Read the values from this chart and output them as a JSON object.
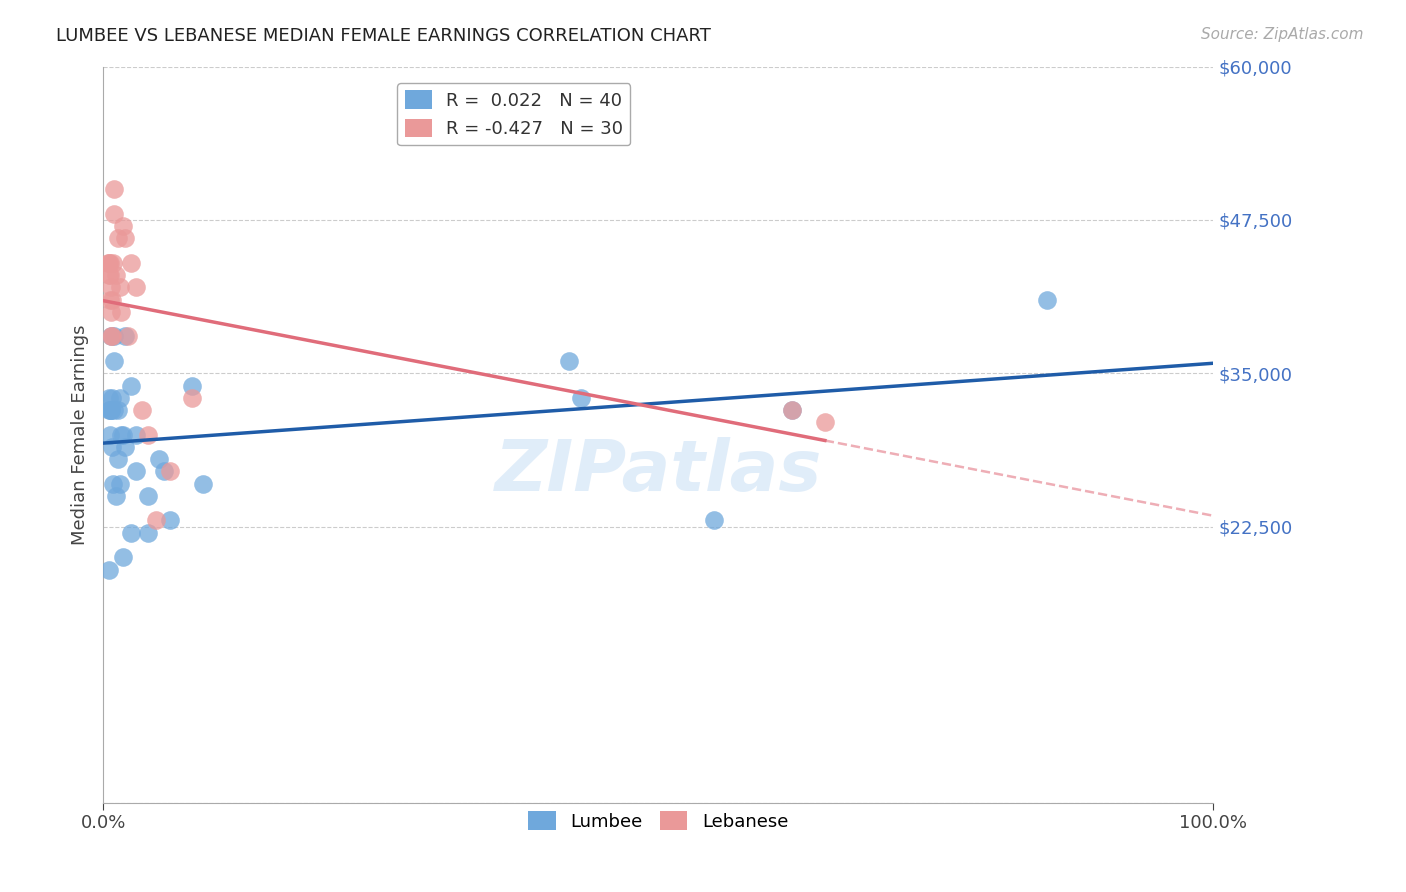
{
  "title": "LUMBEE VS LEBANESE MEDIAN FEMALE EARNINGS CORRELATION CHART",
  "source": "Source: ZipAtlas.com",
  "ylabel": "Median Female Earnings",
  "xlim": [
    0,
    1.0
  ],
  "ylim": [
    0,
    60000
  ],
  "yticks": [
    0,
    22500,
    35000,
    47500,
    60000
  ],
  "ytick_labels": [
    "",
    "$22,500",
    "$35,000",
    "$47,500",
    "$60,000"
  ],
  "lumbee_color": "#6fa8dc",
  "lebanese_color": "#ea9999",
  "lumbee_R": 0.022,
  "lumbee_N": 40,
  "lebanese_R": -0.427,
  "lebanese_N": 30,
  "regression_lumbee_color": "#1f5ca8",
  "regression_lebanese_color": "#e06c7a",
  "watermark": "ZIPatlas",
  "lumbee_x": [
    0.005,
    0.005,
    0.005,
    0.006,
    0.006,
    0.007,
    0.007,
    0.007,
    0.008,
    0.008,
    0.009,
    0.01,
    0.01,
    0.01,
    0.012,
    0.013,
    0.013,
    0.015,
    0.015,
    0.016,
    0.018,
    0.018,
    0.02,
    0.02,
    0.025,
    0.025,
    0.03,
    0.03,
    0.04,
    0.04,
    0.05,
    0.055,
    0.06,
    0.08,
    0.09,
    0.42,
    0.43,
    0.55,
    0.62,
    0.85
  ],
  "lumbee_y": [
    19000,
    32000,
    33000,
    30000,
    32000,
    32000,
    32000,
    38000,
    33000,
    29000,
    26000,
    32000,
    36000,
    38000,
    25000,
    32000,
    28000,
    26000,
    33000,
    30000,
    30000,
    20000,
    38000,
    29000,
    22000,
    34000,
    30000,
    27000,
    25000,
    22000,
    28000,
    27000,
    23000,
    34000,
    26000,
    36000,
    33000,
    23000,
    32000,
    41000
  ],
  "lebanese_x": [
    0.004,
    0.005,
    0.005,
    0.006,
    0.006,
    0.006,
    0.007,
    0.007,
    0.007,
    0.008,
    0.008,
    0.009,
    0.01,
    0.01,
    0.012,
    0.013,
    0.015,
    0.016,
    0.018,
    0.02,
    0.022,
    0.025,
    0.03,
    0.035,
    0.04,
    0.048,
    0.06,
    0.08,
    0.62,
    0.65
  ],
  "lebanese_y": [
    44000,
    43000,
    44000,
    43000,
    44000,
    41000,
    42000,
    40000,
    38000,
    38000,
    41000,
    44000,
    48000,
    50000,
    43000,
    46000,
    42000,
    40000,
    47000,
    46000,
    38000,
    44000,
    42000,
    32000,
    30000,
    23000,
    27000,
    33000,
    32000,
    31000
  ]
}
